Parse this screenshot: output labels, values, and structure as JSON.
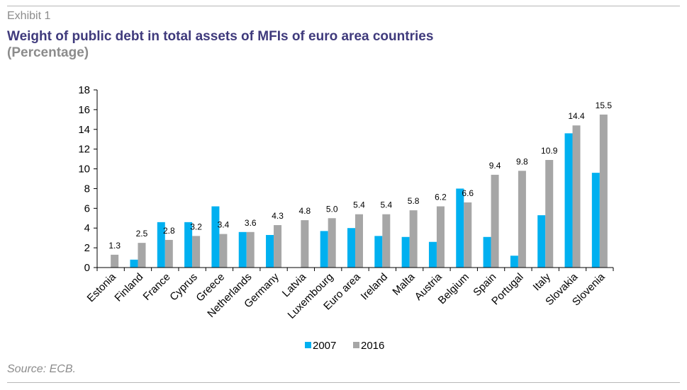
{
  "header": {
    "exhibit": "Exhibit 1",
    "title": "Weight of public debt in total assets of MFIs of euro area countries",
    "subtitle": "(Percentage)"
  },
  "footer": {
    "source": "Source: ECB."
  },
  "colors": {
    "series_2007": "#00b0f0",
    "series_2016": "#a6a6a6",
    "rule": "#b7b7b7",
    "title": "#3f3a7c",
    "muted": "#8c8c8c"
  },
  "chart_data": {
    "type": "bar",
    "categories": [
      "Estonia",
      "Finland",
      "France",
      "Cyprus",
      "Greece",
      "Netherlands",
      "Germany",
      "Latvia",
      "Luxembourg",
      "Euro area",
      "Ireland",
      "Malta",
      "Austria",
      "Belgium",
      "Spain",
      "Portugal",
      "Italy",
      "Slovakia",
      "Slovenia"
    ],
    "series": [
      {
        "name": "2007",
        "values": [
          0,
          0.8,
          4.6,
          4.6,
          6.2,
          3.6,
          3.3,
          0,
          3.7,
          4.0,
          3.2,
          3.1,
          2.6,
          8.0,
          3.1,
          1.2,
          5.3,
          13.6,
          9.6
        ]
      },
      {
        "name": "2016",
        "values": [
          1.3,
          2.5,
          2.8,
          3.2,
          3.4,
          3.6,
          4.3,
          4.8,
          5.0,
          5.4,
          5.4,
          5.8,
          6.2,
          6.6,
          9.4,
          9.8,
          10.9,
          14.4,
          15.5
        ]
      }
    ],
    "data_labels": [
      "1.3",
      "2.5",
      "2.8",
      "3.2",
      "3.4",
      "3.6",
      "4.3",
      "4.8",
      "5.0",
      "5.4",
      "5.4",
      "5.8",
      "6.2",
      "6.6",
      "9.4",
      "9.8",
      "10.9",
      "14.4",
      "15.5"
    ],
    "y_ticks": [
      "0",
      "2",
      "4",
      "6",
      "8",
      "10",
      "12",
      "14",
      "16",
      "18"
    ],
    "ylim": [
      0,
      18
    ],
    "grid": false,
    "legend": "bottom"
  }
}
